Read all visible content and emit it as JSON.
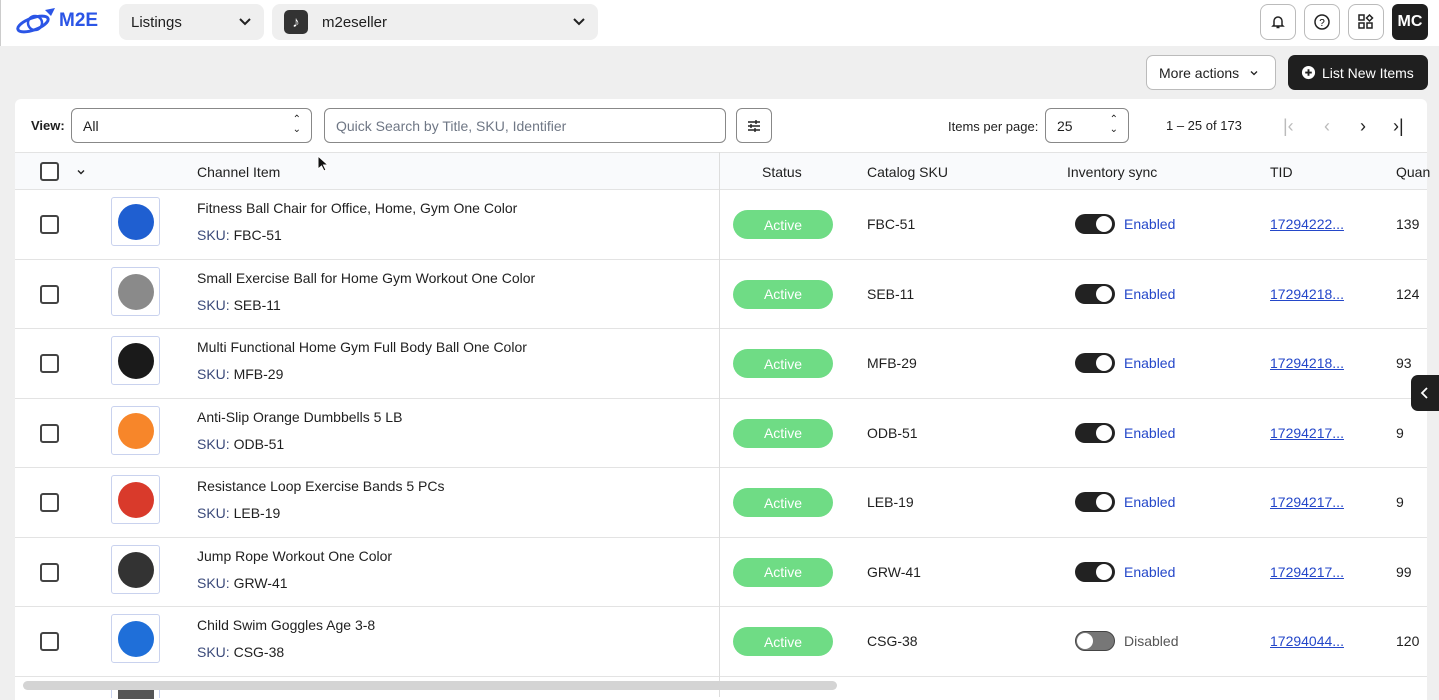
{
  "header": {
    "logo": "M2E",
    "section_select": "Listings",
    "account_select": "m2eseller",
    "avatar": "MC"
  },
  "actions": {
    "more_actions": "More actions",
    "list_new": "List New Items"
  },
  "toolbar": {
    "view_label": "View:",
    "view_value": "All",
    "search_placeholder": "Quick Search by Title, SKU, Identifier",
    "items_per_page_label": "Items per page:",
    "items_per_page": "25",
    "range": "1 – 25 of 173"
  },
  "columns": {
    "channel_item": "Channel Item",
    "status": "Status",
    "catalog_sku": "Catalog SKU",
    "inventory_sync": "Inventory sync",
    "tid": "TID",
    "quantity": "Quan"
  },
  "sku_label": "SKU:",
  "rows": [
    {
      "title": "Fitness Ball Chair for Office, Home, Gym One Color",
      "sku": "FBC-51",
      "status": "Active",
      "catalog_sku": "FBC-51",
      "sync": "Enabled",
      "sync_on": true,
      "tid": "17294222...",
      "qty": "139",
      "img": "#1f5fd1"
    },
    {
      "title": "Small Exercise Ball for Home Gym Workout One Color",
      "sku": "SEB-11",
      "status": "Active",
      "catalog_sku": "SEB-11",
      "sync": "Enabled",
      "sync_on": true,
      "tid": "17294218...",
      "qty": "124",
      "img": "#8a8a8a"
    },
    {
      "title": "Multi Functional Home Gym Full Body Ball One Color",
      "sku": "MFB-29",
      "status": "Active",
      "catalog_sku": "MFB-29",
      "sync": "Enabled",
      "sync_on": true,
      "tid": "17294218...",
      "qty": "93",
      "img": "#1a1a1a"
    },
    {
      "title": "Anti-Slip Orange Dumbbells 5 LB",
      "sku": "ODB-51",
      "status": "Active",
      "catalog_sku": "ODB-51",
      "sync": "Enabled",
      "sync_on": true,
      "tid": "17294217...",
      "qty": "9",
      "img": "#f7862a"
    },
    {
      "title": "Resistance Loop Exercise Bands 5 PCs",
      "sku": "LEB-19",
      "status": "Active",
      "catalog_sku": "LEB-19",
      "sync": "Enabled",
      "sync_on": true,
      "tid": "17294217...",
      "qty": "9",
      "img": "#d93a2b"
    },
    {
      "title": "Jump Rope Workout One Color",
      "sku": "GRW-41",
      "status": "Active",
      "catalog_sku": "GRW-41",
      "sync": "Enabled",
      "sync_on": true,
      "tid": "17294217...",
      "qty": "99",
      "img": "#333333"
    },
    {
      "title": "Child Swim Goggles Age 3-8",
      "sku": "CSG-38",
      "status": "Active",
      "catalog_sku": "CSG-38",
      "sync": "Disabled",
      "sync_on": false,
      "tid": "17294044...",
      "qty": "120",
      "img": "#1f6fd9"
    }
  ]
}
